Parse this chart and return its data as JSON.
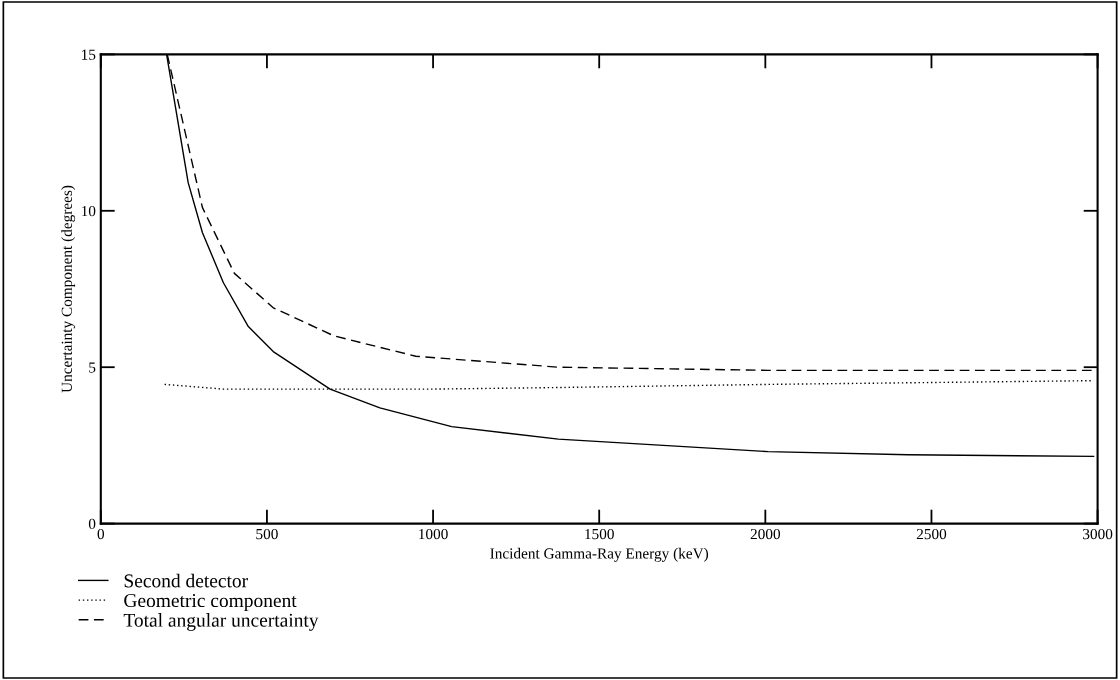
{
  "chart_data": {
    "type": "line",
    "xlabel": "Incident Gamma-Ray Energy (keV)",
    "ylabel": "Uncertainty Component (degrees)",
    "xlim": [
      0,
      3000
    ],
    "xticks": [
      0,
      500,
      1000,
      1500,
      2000,
      2500,
      3000
    ],
    "ylim": [
      0,
      15
    ],
    "yticks": [
      0,
      5,
      10,
      15
    ],
    "grid": false,
    "legend": "bottom left",
    "series": [
      {
        "name": "Second detector",
        "color": "#000000",
        "line_style": "solid",
        "x": [
          198,
          263,
          306,
          369,
          444,
          519,
          690,
          840,
          1056,
          1377,
          2008,
          2430,
          2988
        ],
        "values": [
          15,
          10.9,
          9.3,
          7.7,
          6.3,
          5.5,
          4.3,
          3.7,
          3.1,
          2.7,
          2.3,
          2.2,
          2.15
        ]
      },
      {
        "name": "Geometric component",
        "color": "#000000",
        "line_style": "dotted",
        "x": [
          192,
          369,
          1000,
          1377,
          2008,
          2988
        ],
        "values": [
          4.45,
          4.3,
          4.3,
          4.35,
          4.45,
          4.57
        ]
      },
      {
        "name": "Total angular uncertainty",
        "color": "#000000",
        "line_style": "dashed",
        "x": [
          200,
          306,
          402,
          519,
          702,
          948,
          1377,
          2008,
          2988
        ],
        "values": [
          15,
          10.1,
          8.0,
          6.9,
          6.0,
          5.35,
          5.0,
          4.9,
          4.9
        ]
      }
    ]
  }
}
